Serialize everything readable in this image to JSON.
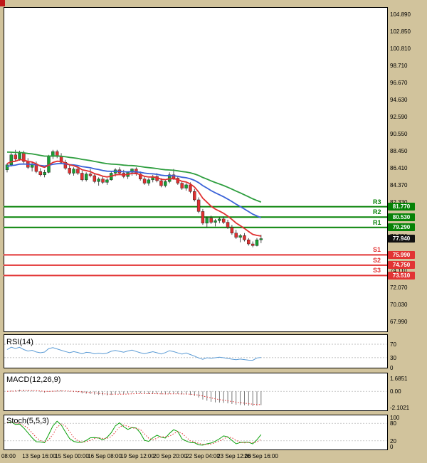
{
  "colors": {
    "background": "#d1c39c",
    "panel_bg": "#ffffff",
    "panel_border": "#000000",
    "bull": "#18a034",
    "bear": "#e03030",
    "resistance": "#068206",
    "support": "#e23333",
    "price_badge_bg": "#111111",
    "rsi_line": "#5b9bd5",
    "macd_signal": "#e03030",
    "macd_hist": "#555555",
    "stoch_k": "#0aa00a",
    "stoch_d": "#e03030",
    "grid": "#aaaaaa"
  },
  "chart_data": {
    "type": "candlestick",
    "title": "",
    "y_axis": [
      "104.890",
      "102.850",
      "100.810",
      "98.710",
      "96.670",
      "94.630",
      "92.590",
      "90.550",
      "88.450",
      "86.410",
      "84.370",
      "82.330",
      "80.290",
      "78.250",
      "76.210",
      "74.110",
      "72.070",
      "70.030",
      "67.990"
    ],
    "y_range": {
      "top": 104.89,
      "bottom": 67.99
    },
    "x_axis_labels": [
      "08:00",
      "13 Sep 16:00",
      "15 Sep 00:00",
      "16 Sep 08:00",
      "19 Sep 12:00",
      "20 Sep 20:00",
      "22 Sep 04:00",
      "23 Sep 12:00",
      "26 Sep 16:00"
    ],
    "candles": [
      [
        86.2,
        87.0,
        85.9,
        86.8
      ],
      [
        86.8,
        88.3,
        86.6,
        88.0
      ],
      [
        88.0,
        88.6,
        87.2,
        87.5
      ],
      [
        87.5,
        88.5,
        87.3,
        88.2
      ],
      [
        88.2,
        88.5,
        87.0,
        87.2
      ],
      [
        87.2,
        87.6,
        86.3,
        86.5
      ],
      [
        86.5,
        87.1,
        86.0,
        86.9
      ],
      [
        86.9,
        87.2,
        85.8,
        86.0
      ],
      [
        86.0,
        86.4,
        85.4,
        85.6
      ],
      [
        85.6,
        86.2,
        85.3,
        85.9
      ],
      [
        85.9,
        88.0,
        85.8,
        87.8
      ],
      [
        87.8,
        88.6,
        87.5,
        88.4
      ],
      [
        88.4,
        88.6,
        87.6,
        87.8
      ],
      [
        87.8,
        88.2,
        86.9,
        87.1
      ],
      [
        87.1,
        87.4,
        86.2,
        86.4
      ],
      [
        86.4,
        86.8,
        85.6,
        85.8
      ],
      [
        85.8,
        86.5,
        85.5,
        86.3
      ],
      [
        86.3,
        86.6,
        85.6,
        85.8
      ],
      [
        85.8,
        86.1,
        84.8,
        85.0
      ],
      [
        85.0,
        85.9,
        84.8,
        85.7
      ],
      [
        85.7,
        86.3,
        85.3,
        85.5
      ],
      [
        85.5,
        85.8,
        84.6,
        84.8
      ],
      [
        84.8,
        85.3,
        84.3,
        85.1
      ],
      [
        85.1,
        85.5,
        84.5,
        84.7
      ],
      [
        84.7,
        85.2,
        84.4,
        85.0
      ],
      [
        85.0,
        86.0,
        84.9,
        85.8
      ],
      [
        85.8,
        86.4,
        85.4,
        86.2
      ],
      [
        86.2,
        86.5,
        85.6,
        85.8
      ],
      [
        85.8,
        86.2,
        85.2,
        85.4
      ],
      [
        85.4,
        86.0,
        85.1,
        85.9
      ],
      [
        85.9,
        86.4,
        85.5,
        86.3
      ],
      [
        86.3,
        86.5,
        85.5,
        85.7
      ],
      [
        85.7,
        86.0,
        84.9,
        85.1
      ],
      [
        85.1,
        85.5,
        84.4,
        84.6
      ],
      [
        84.6,
        85.2,
        84.3,
        85.0
      ],
      [
        85.0,
        85.6,
        84.7,
        85.4
      ],
      [
        85.4,
        85.8,
        84.7,
        84.9
      ],
      [
        84.9,
        85.2,
        84.1,
        84.3
      ],
      [
        84.3,
        85.0,
        84.1,
        84.8
      ],
      [
        84.8,
        85.9,
        84.6,
        85.6
      ],
      [
        85.6,
        86.3,
        85.0,
        85.2
      ],
      [
        85.2,
        85.5,
        84.4,
        84.6
      ],
      [
        84.6,
        84.9,
        83.8,
        84.0
      ],
      [
        84.0,
        84.6,
        83.7,
        84.4
      ],
      [
        84.4,
        84.7,
        83.4,
        83.6
      ],
      [
        83.6,
        83.9,
        82.4,
        82.6
      ],
      [
        82.6,
        82.9,
        81.0,
        81.2
      ],
      [
        81.2,
        81.5,
        79.6,
        79.8
      ],
      [
        79.8,
        80.6,
        79.3,
        80.4
      ],
      [
        80.4,
        80.7,
        79.7,
        79.9
      ],
      [
        79.9,
        80.3,
        79.4,
        80.1
      ],
      [
        80.1,
        80.5,
        79.8,
        80.3
      ],
      [
        80.3,
        80.6,
        79.7,
        79.9
      ],
      [
        79.9,
        80.2,
        79.1,
        79.3
      ],
      [
        79.3,
        79.6,
        78.4,
        78.6
      ],
      [
        78.6,
        79.0,
        77.9,
        78.1
      ],
      [
        78.1,
        78.5,
        77.5,
        78.3
      ],
      [
        78.3,
        78.6,
        77.6,
        77.8
      ],
      [
        77.8,
        78.0,
        77.1,
        77.3
      ],
      [
        77.3,
        77.6,
        76.9,
        77.1
      ],
      [
        77.1,
        78.0,
        77.0,
        77.8
      ],
      [
        77.8,
        78.4,
        77.4,
        77.94
      ]
    ],
    "moving_averages": [
      {
        "name": "ma-slow",
        "period": 48,
        "seed": 88.4,
        "color": "#2e9e3f"
      },
      {
        "name": "ma-medium",
        "period": 26,
        "seed": 86.6,
        "color": "#3a62d8"
      },
      {
        "name": "ma-fast",
        "period": 9,
        "seed": 87.0,
        "color": "#e03030"
      }
    ],
    "levels": [
      {
        "name": "R3",
        "price": 81.77,
        "display": "81.770",
        "type": "resistance"
      },
      {
        "name": "R2",
        "price": 80.53,
        "display": "80.530",
        "type": "resistance"
      },
      {
        "name": "R1",
        "price": 79.29,
        "display": "79.290",
        "type": "resistance"
      },
      {
        "name": "S1",
        "price": 75.99,
        "display": "75.990",
        "type": "support"
      },
      {
        "name": "S2",
        "price": 74.75,
        "display": "74.750",
        "type": "support"
      },
      {
        "name": "S3",
        "price": 73.51,
        "display": "73.510",
        "type": "support"
      }
    ],
    "current_price": {
      "value": "77.940",
      "price": 77.94
    },
    "indicators": [
      {
        "name": "rsi",
        "title": "RSI(14)",
        "axis_labels": [
          {
            "text": "70",
            "v": 70
          },
          {
            "text": "30",
            "v": 30
          },
          {
            "text": "0",
            "v": 0
          }
        ]
      },
      {
        "name": "macd",
        "title": "MACD(12,26,9)",
        "axis_labels": [
          {
            "text": "1.6851",
            "v": 1.6851
          },
          {
            "text": "0.00",
            "v": 0
          },
          {
            "text": "-2.1021",
            "v": -2.1021
          }
        ]
      },
      {
        "name": "stoch",
        "title": "Stoch(5,5,3)",
        "axis_labels": [
          {
            "text": "100",
            "v": 100
          },
          {
            "text": "80",
            "v": 80
          },
          {
            "text": "20",
            "v": 20
          },
          {
            "text": "0",
            "v": 0
          }
        ]
      }
    ]
  }
}
